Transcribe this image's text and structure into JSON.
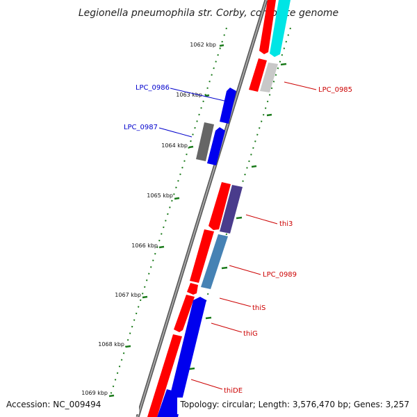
{
  "title": "Legionella pneumophila str. Corby, complete genome",
  "footer": {
    "accession": "Accession: NC_009494",
    "summary": "Topology: circular; Length: 3,576,470 bp; Genes: 3,257"
  },
  "ticks": [
    "1062 kbp",
    "1063 kbp",
    "1064 kbp",
    "1065 kbp",
    "1066 kbp",
    "1067 kbp",
    "1068 kbp",
    "1069 kbp"
  ],
  "gene_labels": [
    {
      "name": "LPC_0986",
      "color": "#0000cc"
    },
    {
      "name": "LPC_0987",
      "color": "#0000cc"
    },
    {
      "name": "LPC_0985",
      "color": "#cc0000"
    },
    {
      "name": "thi3",
      "color": "#cc0000"
    },
    {
      "name": "LPC_0989",
      "color": "#cc0000"
    },
    {
      "name": "thiS",
      "color": "#cc0000"
    },
    {
      "name": "thiG",
      "color": "#cc0000"
    },
    {
      "name": "thiDE",
      "color": "#cc0000"
    }
  ],
  "colors": {
    "backbone": "#888888",
    "tick_dots": "#1a7a1a",
    "red_feature": "#ff0000",
    "blue_feature": "#0000ee",
    "cyan_feature": "#00e5e5",
    "gray_feature": "#666666",
    "purple_feature": "#4a3c8c",
    "steel_feature": "#4682b4"
  }
}
